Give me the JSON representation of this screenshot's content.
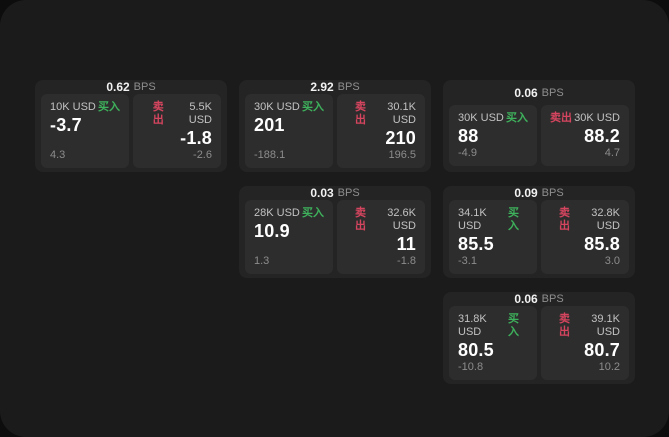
{
  "labels": {
    "buy": "买入",
    "sell": "卖出",
    "bps_suffix": "BPS"
  },
  "colors": {
    "outer_background": "#0d0d0d",
    "surface": "#1b1b1b",
    "card_bg": "#242424",
    "panel_bg": "#2d2d2d",
    "buy_green": "#3eb15c",
    "sell_red": "#d6455f"
  },
  "cards": [
    {
      "bps": "0.62",
      "buy": {
        "notional": "10K USD",
        "value": "-3.7",
        "delta": "4.3"
      },
      "sell": {
        "notional": "5.5K USD",
        "value": "-1.8",
        "delta": "-2.6"
      }
    },
    {
      "bps": "2.92",
      "buy": {
        "notional": "30K USD",
        "value": "201",
        "delta": "-188.1"
      },
      "sell": {
        "notional": "30.1K USD",
        "value": "210",
        "delta": "196.5"
      }
    },
    {
      "bps": "0.06",
      "buy": {
        "notional": "30K USD",
        "value": "88",
        "delta": "-4.9"
      },
      "sell": {
        "notional": "30K USD",
        "value": "88.2",
        "delta": "4.7"
      }
    },
    {
      "bps": "0.03",
      "buy": {
        "notional": "28K USD",
        "value": "10.9",
        "delta": "1.3"
      },
      "sell": {
        "notional": "32.6K USD",
        "value": "11",
        "delta": "-1.8"
      }
    },
    {
      "bps": "0.09",
      "buy": {
        "notional": "34.1K USD",
        "value": "85.5",
        "delta": "-3.1"
      },
      "sell": {
        "notional": "32.8K USD",
        "value": "85.8",
        "delta": "3.0"
      }
    },
    {
      "bps": "0.06",
      "buy": {
        "notional": "31.8K USD",
        "value": "80.5",
        "delta": "-10.8"
      },
      "sell": {
        "notional": "39.1K USD",
        "value": "80.7",
        "delta": "10.2"
      }
    }
  ]
}
